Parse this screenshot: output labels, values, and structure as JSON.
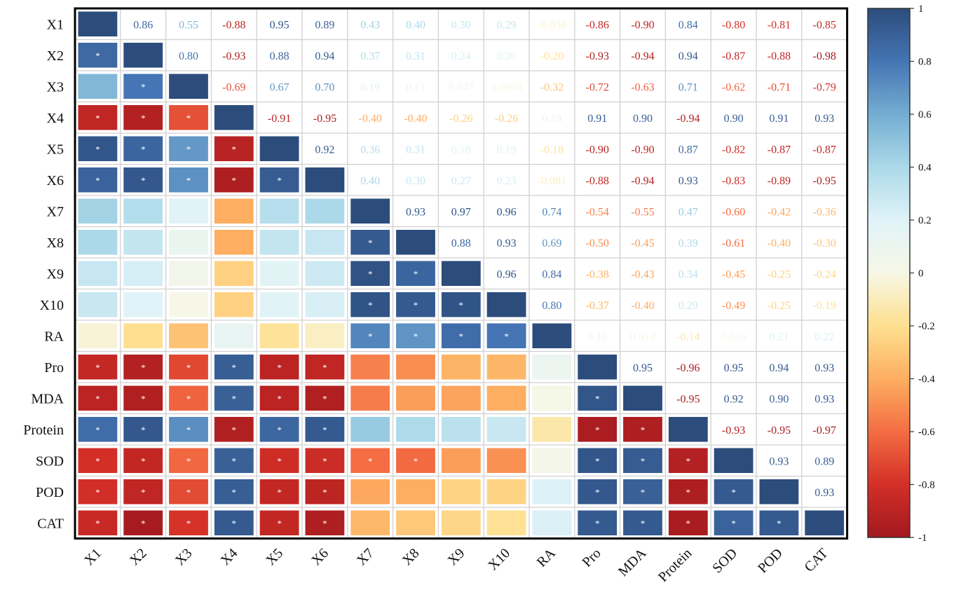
{
  "chart_data": {
    "type": "heatmap",
    "variables": [
      "X1",
      "X2",
      "X3",
      "X4",
      "X5",
      "X6",
      "X7",
      "X8",
      "X9",
      "X10",
      "RA",
      "Pro",
      "MDA",
      "Protein",
      "SOD",
      "POD",
      "CAT"
    ],
    "upper_triangle_labels": [
      [
        "",
        "0.86",
        "0.55",
        "-0.88",
        "0.95",
        "0.89",
        "0.43",
        "0.40",
        "0.30",
        "0.29",
        "-0.038",
        "-0.86",
        "-0.90",
        "0.84",
        "-0.80",
        "-0.81",
        "-0.85"
      ],
      [
        "",
        "",
        "0.80",
        "-0.93",
        "0.88",
        "0.94",
        "0.37",
        "0.31",
        "0.24",
        "0.20",
        "-0.20",
        "-0.93",
        "-0.94",
        "0.94",
        "-0.87",
        "-0.88",
        "-0.98"
      ],
      [
        "",
        "",
        "",
        "-0.69",
        "0.67",
        "0.70",
        "0.19",
        "0.11",
        "0.047",
        "0.0094",
        "-0.32",
        "-0.72",
        "-0.63",
        "0.71",
        "-0.62",
        "-0.71",
        "-0.79"
      ],
      [
        "",
        "",
        "",
        "",
        "-0.91",
        "-0.95",
        "-0.40",
        "-0.40",
        "-0.26",
        "-0.26",
        "0.13",
        "0.91",
        "0.90",
        "-0.94",
        "0.90",
        "0.91",
        "0.93"
      ],
      [
        "",
        "",
        "",
        "",
        "",
        "0.92",
        "0.36",
        "0.31",
        "0.18",
        "0.19",
        "-0.18",
        "-0.90",
        "-0.90",
        "0.87",
        "-0.82",
        "-0.87",
        "-0.87"
      ],
      [
        "",
        "",
        "",
        "",
        "",
        "",
        "0.40",
        "0.30",
        "0.27",
        "0.23",
        "-0.081",
        "-0.88",
        "-0.94",
        "0.93",
        "-0.83",
        "-0.89",
        "-0.95"
      ],
      [
        "",
        "",
        "",
        "",
        "",
        "",
        "",
        "0.93",
        "0.97",
        "0.96",
        "0.74",
        "-0.54",
        "-0.55",
        "0.47",
        "-0.60",
        "-0.42",
        "-0.36"
      ],
      [
        "",
        "",
        "",
        "",
        "",
        "",
        "",
        "",
        "0.88",
        "0.93",
        "0.69",
        "-0.50",
        "-0.45",
        "0.39",
        "-0.61",
        "-0.40",
        "-0.30"
      ],
      [
        "",
        "",
        "",
        "",
        "",
        "",
        "",
        "",
        "",
        "0.96",
        "0.84",
        "-0.38",
        "-0.43",
        "0.34",
        "-0.45",
        "-0.25",
        "-0.24"
      ],
      [
        "",
        "",
        "",
        "",
        "",
        "",
        "",
        "",
        "",
        "",
        "0.80",
        "-0.37",
        "-0.40",
        "0.29",
        "-0.49",
        "-0.25",
        "-0.19"
      ],
      [
        "",
        "",
        "",
        "",
        "",
        "",
        "",
        "",
        "",
        "",
        "",
        "0.10",
        "0.014",
        "-0.14",
        "0.036",
        "0.21",
        "0.22"
      ],
      [
        "",
        "",
        "",
        "",
        "",
        "",
        "",
        "",
        "",
        "",
        "",
        "",
        "0.95",
        "-0.96",
        "0.95",
        "0.94",
        "0.93"
      ],
      [
        "",
        "",
        "",
        "",
        "",
        "",
        "",
        "",
        "",
        "",
        "",
        "",
        "",
        "-0.95",
        "0.92",
        "0.90",
        "0.93"
      ],
      [
        "",
        "",
        "",
        "",
        "",
        "",
        "",
        "",
        "",
        "",
        "",
        "",
        "",
        "",
        "-0.93",
        "-0.95",
        "-0.97"
      ],
      [
        "",
        "",
        "",
        "",
        "",
        "",
        "",
        "",
        "",
        "",
        "",
        "",
        "",
        "",
        "",
        "0.93",
        "0.89"
      ],
      [
        "",
        "",
        "",
        "",
        "",
        "",
        "",
        "",
        "",
        "",
        "",
        "",
        "",
        "",
        "",
        "",
        "0.93"
      ],
      [
        "",
        "",
        "",
        "",
        "",
        "",
        "",
        "",
        "",
        "",
        "",
        "",
        "",
        "",
        "",
        "",
        ""
      ]
    ],
    "significant_pairs": [
      [
        1,
        0
      ],
      [
        2,
        1
      ],
      [
        3,
        0
      ],
      [
        3,
        1
      ],
      [
        3,
        2
      ],
      [
        4,
        0
      ],
      [
        4,
        1
      ],
      [
        4,
        2
      ],
      [
        4,
        3
      ],
      [
        5,
        0
      ],
      [
        5,
        1
      ],
      [
        5,
        2
      ],
      [
        5,
        3
      ],
      [
        5,
        4
      ],
      [
        7,
        6
      ],
      [
        8,
        6
      ],
      [
        8,
        7
      ],
      [
        9,
        6
      ],
      [
        9,
        7
      ],
      [
        9,
        8
      ],
      [
        10,
        6
      ],
      [
        10,
        7
      ],
      [
        10,
        8
      ],
      [
        10,
        9
      ],
      [
        11,
        0
      ],
      [
        11,
        1
      ],
      [
        11,
        2
      ],
      [
        11,
        3
      ],
      [
        11,
        4
      ],
      [
        11,
        5
      ],
      [
        12,
        0
      ],
      [
        12,
        1
      ],
      [
        12,
        2
      ],
      [
        12,
        3
      ],
      [
        12,
        4
      ],
      [
        12,
        5
      ],
      [
        12,
        11
      ],
      [
        13,
        0
      ],
      [
        13,
        1
      ],
      [
        13,
        2
      ],
      [
        13,
        3
      ],
      [
        13,
        4
      ],
      [
        13,
        5
      ],
      [
        13,
        11
      ],
      [
        13,
        12
      ],
      [
        14,
        0
      ],
      [
        14,
        1
      ],
      [
        14,
        2
      ],
      [
        14,
        3
      ],
      [
        14,
        4
      ],
      [
        14,
        5
      ],
      [
        14,
        6
      ],
      [
        14,
        7
      ],
      [
        14,
        11
      ],
      [
        14,
        12
      ],
      [
        14,
        13
      ],
      [
        15,
        0
      ],
      [
        15,
        1
      ],
      [
        15,
        2
      ],
      [
        15,
        3
      ],
      [
        15,
        4
      ],
      [
        15,
        5
      ],
      [
        15,
        11
      ],
      [
        15,
        12
      ],
      [
        15,
        13
      ],
      [
        15,
        14
      ],
      [
        16,
        0
      ],
      [
        16,
        1
      ],
      [
        16,
        2
      ],
      [
        16,
        3
      ],
      [
        16,
        4
      ],
      [
        16,
        5
      ],
      [
        16,
        11
      ],
      [
        16,
        12
      ],
      [
        16,
        13
      ],
      [
        16,
        14
      ],
      [
        16,
        15
      ]
    ],
    "significance_marker": "*",
    "colorbar": {
      "range": [
        -1,
        1
      ],
      "ticks": [
        "1",
        "0.8",
        "0.6",
        "0.4",
        "0.2",
        "0",
        "-0.2",
        "-0.4",
        "-0.6",
        "-0.8",
        "-1"
      ],
      "colors": [
        "#a2191f",
        "#d32f27",
        "#f46d43",
        "#fdae61",
        "#fee090",
        "#f7f7e6",
        "#e0f3f8",
        "#abd9e9",
        "#74add1",
        "#4575b4",
        "#2c4c7c"
      ]
    },
    "grid": true,
    "legend_position": "right"
  }
}
